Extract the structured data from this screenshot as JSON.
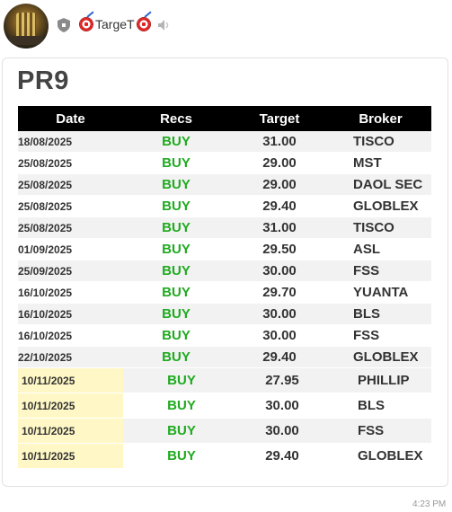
{
  "header": {
    "channel_name": "TargeT",
    "icons": [
      "avatar",
      "shield-icon",
      "target-icon",
      "speaker-muted-icon"
    ]
  },
  "card": {
    "title": "PR9",
    "columns": [
      "Date",
      "Recs",
      "Target",
      "Broker"
    ],
    "rows": [
      {
        "date": "18/08/2025",
        "rec": "BUY",
        "target": "31.00",
        "broker": "TISCO",
        "highlight": false
      },
      {
        "date": "25/08/2025",
        "rec": "BUY",
        "target": "29.00",
        "broker": "MST",
        "highlight": false
      },
      {
        "date": "25/08/2025",
        "rec": "BUY",
        "target": "29.00",
        "broker": "DAOL SEC",
        "highlight": false
      },
      {
        "date": "25/08/2025",
        "rec": "BUY",
        "target": "29.40",
        "broker": "GLOBLEX",
        "highlight": false
      },
      {
        "date": "25/08/2025",
        "rec": "BUY",
        "target": "31.00",
        "broker": "TISCO",
        "highlight": false
      },
      {
        "date": "01/09/2025",
        "rec": "BUY",
        "target": "29.50",
        "broker": "ASL",
        "highlight": false
      },
      {
        "date": "25/09/2025",
        "rec": "BUY",
        "target": "30.00",
        "broker": "FSS",
        "highlight": false
      },
      {
        "date": "16/10/2025",
        "rec": "BUY",
        "target": "29.70",
        "broker": "YUANTA",
        "highlight": false
      },
      {
        "date": "16/10/2025",
        "rec": "BUY",
        "target": "30.00",
        "broker": "BLS",
        "highlight": false
      },
      {
        "date": "16/10/2025",
        "rec": "BUY",
        "target": "30.00",
        "broker": "FSS",
        "highlight": false
      },
      {
        "date": "22/10/2025",
        "rec": "BUY",
        "target": "29.40",
        "broker": "GLOBLEX",
        "highlight": false
      },
      {
        "date": "10/11/2025",
        "rec": "BUY",
        "target": "27.95",
        "broker": "PHILLIP",
        "highlight": true
      },
      {
        "date": "10/11/2025",
        "rec": "BUY",
        "target": "30.00",
        "broker": "BLS",
        "highlight": true
      },
      {
        "date": "10/11/2025",
        "rec": "BUY",
        "target": "30.00",
        "broker": "FSS",
        "highlight": true
      },
      {
        "date": "10/11/2025",
        "rec": "BUY",
        "target": "29.40",
        "broker": "GLOBLEX",
        "highlight": true
      }
    ]
  },
  "message": {
    "time": "4:23 PM"
  },
  "colors": {
    "buy": "#1faa1f",
    "header_bg": "#000000",
    "highlight": "#fff8c6"
  }
}
